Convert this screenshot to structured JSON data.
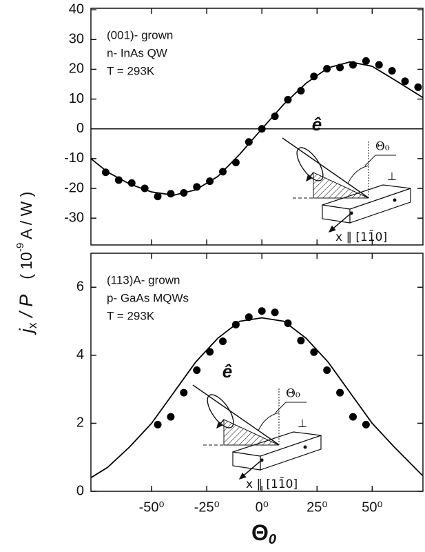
{
  "chart_data": [
    {
      "type": "scatter",
      "annotations": [
        "(001)- grown",
        "n- InAs  QW",
        "T = 293K"
      ],
      "inset": {
        "polarization": "ê",
        "angle": "Θ₀",
        "perp": "⊥",
        "axis": "x ∥ [11̄0]"
      },
      "xlim": [
        -77.5,
        73
      ],
      "xticks": [
        -50,
        -25,
        0,
        25,
        50
      ],
      "ylim": [
        -39,
        40.5
      ],
      "yticks": [
        -30,
        -20,
        -10,
        0,
        10,
        20,
        30,
        40
      ],
      "reference_line": 0,
      "series": [
        {
          "style": "markers",
          "color": "#000000",
          "x": [
            -70.8,
            -64.9,
            -59.0,
            -53.1,
            -47.2,
            -41.3,
            -35.4,
            -29.5,
            -23.6,
            -17.7,
            -11.8,
            -5.9,
            0,
            5.9,
            11.8,
            17.7,
            23.6,
            29.5,
            35.4,
            41.3,
            47.2,
            53.1,
            59.0,
            64.9,
            70.8
          ],
          "values": [
            -14.6,
            -17.2,
            -18.2,
            -20.0,
            -22.7,
            -21.8,
            -21.5,
            -19.5,
            -17.6,
            -14.4,
            -11.3,
            -4.4,
            0.0,
            4.2,
            9.8,
            12.8,
            17.6,
            20.2,
            20.6,
            21.5,
            22.8,
            21.5,
            19.5,
            16.0,
            14.0
          ]
        },
        {
          "style": "line",
          "color": "#000000",
          "x": [
            -77.5,
            -70,
            -60,
            -50,
            -40,
            -30,
            -20,
            -10,
            0,
            10,
            20,
            30,
            40,
            50,
            60,
            73
          ],
          "values": [
            -10,
            -14.5,
            -18.5,
            -21.2,
            -22.3,
            -20.5,
            -16,
            -8.5,
            0,
            8.3,
            15.3,
            20.5,
            22.5,
            21,
            16.5,
            10.5
          ]
        }
      ]
    },
    {
      "type": "scatter",
      "annotations": [
        "(113)A- grown",
        "p- GaAs MQWs",
        "T = 293K"
      ],
      "inset": {
        "polarization": "ê",
        "angle": "Θ₀",
        "perp": "⊥",
        "axis": "x ∥ [11̄0]"
      },
      "ylabel": {
        "main": "j",
        "sub": "x",
        "rest": " / P",
        "units": "( 10",
        "exp": "-9",
        "units2": " A / W )"
      },
      "xlabel": {
        "main": "Θ",
        "sub": "0"
      },
      "xlim": [
        -77.5,
        73
      ],
      "xticks": [
        {
          "value": -50,
          "label": "-50⁰"
        },
        {
          "value": -25,
          "label": "-25⁰"
        },
        {
          "value": 0,
          "label": "0⁰"
        },
        {
          "value": 25,
          "label": "25⁰"
        },
        {
          "value": 50,
          "label": "50⁰"
        }
      ],
      "ylim": [
        0,
        7
      ],
      "yticks": [
        0,
        2,
        4,
        6
      ],
      "series": [
        {
          "style": "markers",
          "color": "#000000",
          "x": [
            -47.2,
            -41.3,
            -35.4,
            -29.5,
            -23.6,
            -17.7,
            -11.8,
            -5.9,
            0,
            5.9,
            11.8,
            17.7,
            23.6,
            29.5,
            35.4,
            41.3,
            47.2
          ],
          "values": [
            1.96,
            2.19,
            2.9,
            3.56,
            4.1,
            4.41,
            4.9,
            5.12,
            5.3,
            5.26,
            4.94,
            4.43,
            4.09,
            3.56,
            2.9,
            2.19,
            1.96
          ]
        },
        {
          "style": "line",
          "color": "#000000",
          "x": [
            -77.5,
            -70,
            -60,
            -50,
            -40,
            -30,
            -20,
            -10,
            0,
            10,
            20,
            30,
            40,
            50,
            60,
            73
          ],
          "values": [
            0.4,
            0.7,
            1.3,
            2.0,
            2.9,
            3.8,
            4.5,
            5.0,
            5.1,
            5.0,
            4.5,
            3.8,
            2.9,
            2.0,
            1.3,
            0.45
          ]
        }
      ]
    }
  ]
}
